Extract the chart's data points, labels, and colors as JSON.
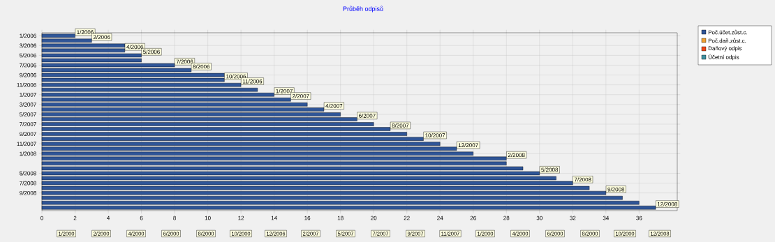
{
  "chart_data": {
    "type": "bar",
    "orientation": "horizontal",
    "title": "Průběh odpisů",
    "categories": [
      "1/2006",
      null,
      "3/2006",
      null,
      "5/2006",
      null,
      "7/2006",
      null,
      "9/2006",
      null,
      "11/2006",
      null,
      "1/2007",
      null,
      "3/2007",
      null,
      "5/2007",
      null,
      "7/2007",
      null,
      "9/2007",
      null,
      "11/2007",
      null,
      "1/2008",
      null,
      null,
      null,
      "5/2008",
      null,
      "7/2008",
      null,
      "9/2008",
      null,
      null,
      null
    ],
    "series": [
      {
        "name": "Poč.účet.zůst.c.",
        "color": "#2f5597",
        "values": [
          2,
          3,
          5,
          5,
          6,
          6,
          8,
          9,
          11,
          11,
          12,
          13,
          14,
          15,
          16,
          17,
          18,
          19,
          20,
          21,
          22,
          23,
          24,
          25,
          26,
          28,
          28,
          29,
          30,
          31,
          32,
          33,
          34,
          35,
          36,
          37
        ],
        "value_labels": [
          "1/2006",
          "2/2006",
          null,
          "4/2006",
          "5/2006",
          null,
          "7/2006",
          "8/2006",
          null,
          "10/2006",
          "11/2006",
          null,
          "1/2007",
          "2/2007",
          null,
          "4/2007",
          null,
          "6/2007",
          null,
          "8/2007",
          null,
          "10/2007",
          null,
          "12/2007",
          null,
          "2/2008",
          null,
          null,
          "5/2008",
          null,
          "7/2008",
          null,
          "9/2008",
          null,
          null,
          "12/2008"
        ]
      },
      {
        "name": "Poč.daň.zůst.c.",
        "color": "#f0a030",
        "values": [
          null,
          null,
          null,
          null,
          null,
          null,
          null,
          null,
          null,
          null,
          null,
          null,
          null,
          null,
          null,
          null,
          null,
          null,
          null,
          null,
          null,
          null,
          null,
          null,
          null,
          null,
          null,
          null,
          null,
          null,
          null,
          null,
          null,
          null,
          null,
          null
        ]
      },
      {
        "name": "Daňový odpis",
        "color": "#f04818",
        "values": [
          null,
          null,
          null,
          null,
          null,
          null,
          null,
          null,
          null,
          null,
          null,
          null,
          null,
          null,
          null,
          null,
          null,
          null,
          null,
          null,
          null,
          null,
          null,
          null,
          null,
          null,
          null,
          null,
          null,
          null,
          null,
          null,
          null,
          null,
          null,
          null
        ]
      },
      {
        "name": "Účetní odpis",
        "color": "#3f8f9f",
        "values": [
          null,
          null,
          null,
          null,
          null,
          null,
          null,
          null,
          null,
          null,
          null,
          null,
          null,
          null,
          null,
          null,
          null,
          null,
          null,
          null,
          null,
          null,
          null,
          null,
          null,
          null,
          null,
          null,
          null,
          null,
          null,
          null,
          null,
          null,
          null,
          null
        ]
      }
    ],
    "xlim": [
      0,
      38.3
    ],
    "xticks": [
      0,
      2,
      4,
      6,
      8,
      10,
      12,
      14,
      16,
      18,
      20,
      22,
      24,
      26,
      28,
      30,
      32,
      34,
      36
    ],
    "grid": true,
    "legend": "top right",
    "annotations": [
      "1/2000",
      "2/2000",
      "4/2000",
      "6/2000",
      "8/2000",
      "10/2000",
      "12/2006",
      "2/2007",
      "5/2007",
      "7/2007",
      "9/2007",
      "11/2007",
      "1/2000",
      "4/2000",
      "6/2000",
      "8/2000",
      "10/2000",
      "12/2008"
    ]
  }
}
